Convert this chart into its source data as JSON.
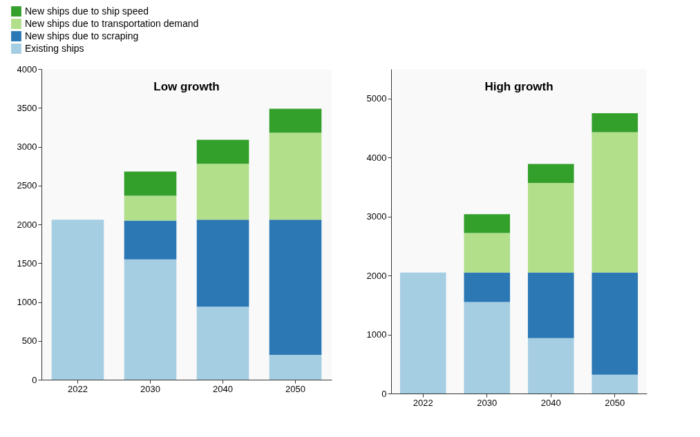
{
  "chart_data": [
    {
      "type": "bar",
      "stacked": true,
      "title": "Low growth",
      "categories": [
        "2022",
        "2030",
        "2040",
        "2050"
      ],
      "ylim": [
        0,
        4000
      ],
      "yticks": [
        0,
        500,
        1000,
        1500,
        2000,
        2500,
        3000,
        3500,
        4000
      ],
      "grid": false,
      "legend": "top left",
      "series": [
        {
          "name": "Existing ships",
          "color": "#a6cee3",
          "values": [
            2060,
            1550,
            940,
            320
          ]
        },
        {
          "name": "New ships due to scraping",
          "color": "#2b78b4",
          "values": [
            null,
            500,
            1120,
            1740
          ]
        },
        {
          "name": "New ships due to transportation demand",
          "color": "#b2df8a",
          "values": [
            null,
            320,
            720,
            1120
          ]
        },
        {
          "name": "New ships due to ship speed",
          "color": "#33a02c",
          "values": [
            null,
            310,
            310,
            310
          ]
        }
      ]
    },
    {
      "type": "bar",
      "stacked": true,
      "title": "High growth",
      "categories": [
        "2022",
        "2030",
        "2040",
        "2050"
      ],
      "ylim": [
        0,
        5500
      ],
      "yticks": [
        0,
        1000,
        2000,
        3000,
        4000,
        5000
      ],
      "grid": false,
      "legend": false,
      "series": [
        {
          "color": "#a6cee3",
          "values": [
            2050,
            1550,
            940,
            320
          ]
        },
        {
          "color": "#2b78b4",
          "values": [
            null,
            500,
            1110,
            1730
          ]
        },
        {
          "color": "#b2df8a",
          "values": [
            null,
            670,
            1520,
            2380
          ]
        },
        {
          "color": "#33a02c",
          "values": [
            null,
            320,
            320,
            320
          ]
        }
      ]
    }
  ]
}
